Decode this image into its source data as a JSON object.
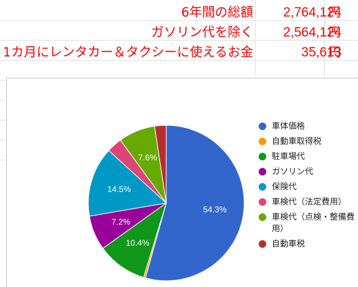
{
  "sheet": {
    "rows": [
      {
        "label": "6年間の総額",
        "value": "2,764,124",
        "unit": "円"
      },
      {
        "label": "ガソリン代を除く",
        "value": "2,564,124",
        "unit": "円"
      },
      {
        "label": "1カ月にレンタカー＆タクシーに使えるお金",
        "value": "35,613",
        "unit": "円"
      }
    ]
  },
  "chart_data": {
    "type": "pie",
    "title": "",
    "legend_position": "right",
    "slices": [
      {
        "name": "車体価格",
        "value": 54.3,
        "label": "54.3%",
        "color": "#3366cc"
      },
      {
        "name": "自動車取得税",
        "value": 0.4,
        "label": "",
        "color": "#ff9900"
      },
      {
        "name": "駐車場代",
        "value": 10.4,
        "label": "10.4%",
        "color": "#109618"
      },
      {
        "name": "ガソリン代",
        "value": 7.2,
        "label": "7.2%",
        "color": "#990099"
      },
      {
        "name": "保険代",
        "value": 14.5,
        "label": "14.5%",
        "color": "#0099c6"
      },
      {
        "name": "車検代（法定費用）",
        "value": 3.2,
        "label": "",
        "color": "#dd4477"
      },
      {
        "name": "車検代（点検・整備費用）",
        "value": 7.6,
        "label": "7.6%",
        "color": "#66aa00"
      },
      {
        "name": "自動車税",
        "value": 2.4,
        "label": "",
        "color": "#b82e2e"
      }
    ]
  }
}
